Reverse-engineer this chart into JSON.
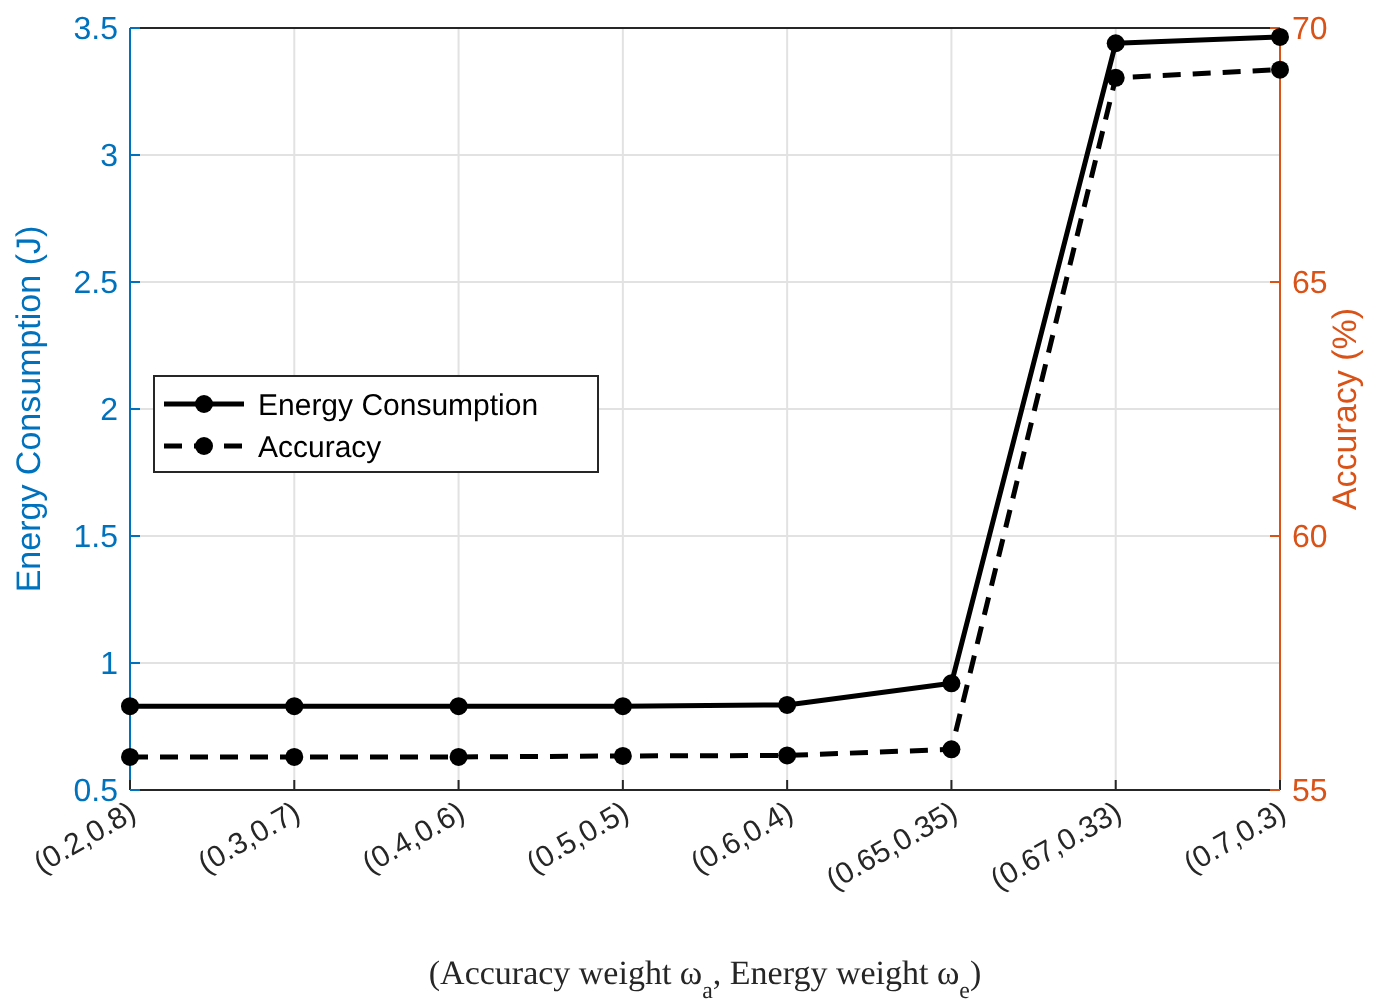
{
  "chart_data": {
    "type": "line",
    "categories": [
      "(0.2,0.8)",
      "(0.3,0.7)",
      "(0.4,0.6)",
      "(0.5,0.5)",
      "(0.6,0.4)",
      "(0.65,0.35)",
      "(0.67,0.33)",
      "(0.7,0.3)"
    ],
    "xlabel": "(Accuracy weight ω$_{a}$, Energy weight ω$_{e}$)",
    "ylabel": "Energy Consumption (J)",
    "y2label": "Accuracy (%)",
    "ylim": [
      0.5,
      3.5
    ],
    "yticks": [
      0.5,
      1,
      1.5,
      2,
      2.5,
      3,
      3.5
    ],
    "y2lim": [
      55,
      70
    ],
    "y2ticks": [
      55,
      60,
      65,
      70
    ],
    "grid": true,
    "legend": "left",
    "marker": "circle",
    "series": [
      {
        "name": "Energy Consumption",
        "color": "#000000",
        "line_style": "solid",
        "values": [
          0.83,
          0.83,
          0.83,
          0.83,
          0.835,
          0.92,
          3.44,
          3.465
        ]
      },
      {
        "name": "Accuracy",
        "color": "#000000",
        "line_style": "dashed",
        "axis": "y2",
        "values": [
          55.65,
          55.65,
          55.65,
          55.67,
          55.68,
          55.8,
          69.02,
          69.18
        ]
      }
    ]
  }
}
